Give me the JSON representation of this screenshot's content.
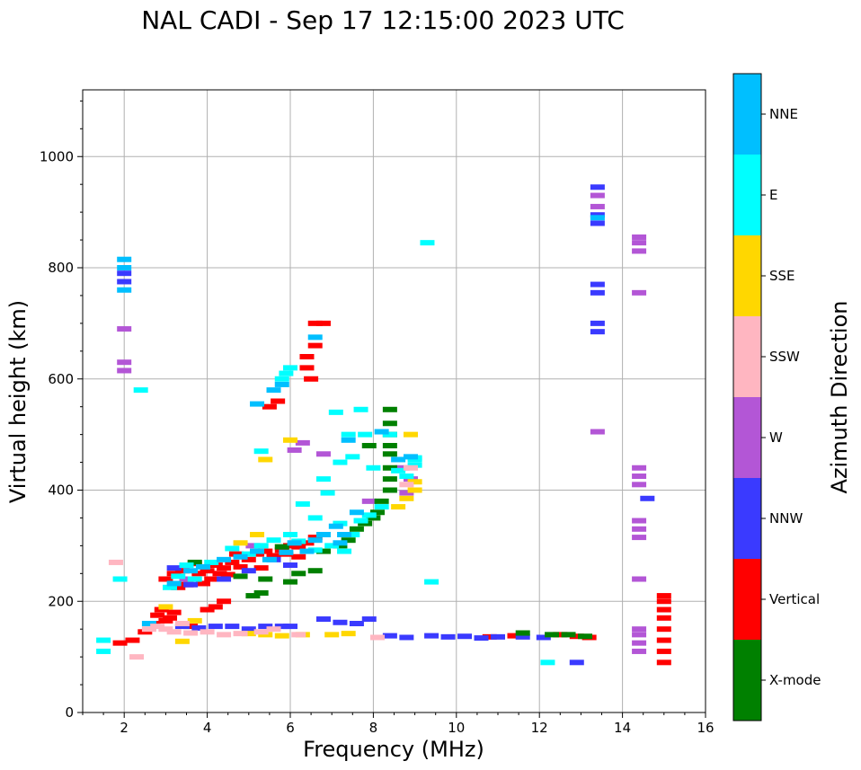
{
  "chart_data": {
    "type": "scatter",
    "title": "NAL CADI - Sep 17 12:15:00 2023 UTC",
    "xlabel": "Frequency (MHz)",
    "ylabel": "Virtual height (km)",
    "xlim": [
      1,
      16
    ],
    "ylim": [
      0,
      1120
    ],
    "xticks": [
      2,
      4,
      6,
      8,
      10,
      12,
      14,
      16
    ],
    "yticks": [
      0,
      200,
      400,
      600,
      800,
      1000
    ],
    "grid": true,
    "colorbar": {
      "label": "Azimuth Direction",
      "categories": [
        {
          "name": "X-mode",
          "color": "#008000"
        },
        {
          "name": "Vertical",
          "color": "#ff0000"
        },
        {
          "name": "NNW",
          "color": "#3a3aff"
        },
        {
          "name": "W",
          "color": "#b356d6"
        },
        {
          "name": "SSW",
          "color": "#ffb6c1"
        },
        {
          "name": "SSE",
          "color": "#ffd700"
        },
        {
          "name": "E",
          "color": "#00ffff"
        },
        {
          "name": "NNE",
          "color": "#00bfff"
        }
      ]
    },
    "series": [
      {
        "name": "Vertical",
        "points": [
          [
            1.9,
            125
          ],
          [
            2.2,
            130
          ],
          [
            2.5,
            145
          ],
          [
            2.7,
            160
          ],
          [
            2.8,
            175
          ],
          [
            2.9,
            185
          ],
          [
            3.0,
            165
          ],
          [
            3.1,
            170
          ],
          [
            3.2,
            180
          ],
          [
            3.0,
            240
          ],
          [
            3.2,
            250
          ],
          [
            3.4,
            255
          ],
          [
            3.6,
            240
          ],
          [
            3.8,
            250
          ],
          [
            4.0,
            255
          ],
          [
            4.2,
            265
          ],
          [
            4.4,
            260
          ],
          [
            4.6,
            270
          ],
          [
            4.8,
            262
          ],
          [
            5.0,
            275
          ],
          [
            5.2,
            285
          ],
          [
            5.4,
            290
          ],
          [
            5.6,
            282
          ],
          [
            5.8,
            292
          ],
          [
            6.0,
            300
          ],
          [
            6.2,
            298
          ],
          [
            6.4,
            305
          ],
          [
            6.6,
            315
          ],
          [
            3.3,
            225
          ],
          [
            3.5,
            230
          ],
          [
            4.1,
            240
          ],
          [
            4.3,
            250
          ],
          [
            4.5,
            248
          ],
          [
            3.9,
            232
          ],
          [
            3.7,
            268
          ],
          [
            4.7,
            285
          ],
          [
            5.3,
            260
          ],
          [
            3.6,
            155
          ],
          [
            4.0,
            185
          ],
          [
            4.2,
            190
          ],
          [
            4.4,
            200
          ],
          [
            5.5,
            550
          ],
          [
            5.7,
            560
          ],
          [
            6.4,
            620
          ],
          [
            6.4,
            640
          ],
          [
            6.6,
            660
          ],
          [
            6.8,
            700
          ],
          [
            6.6,
            700
          ],
          [
            6.5,
            600
          ],
          [
            15.0,
            90
          ],
          [
            15.0,
            110
          ],
          [
            15.0,
            130
          ],
          [
            15.0,
            150
          ],
          [
            15.0,
            170
          ],
          [
            15.0,
            185
          ],
          [
            15.0,
            200
          ],
          [
            15.0,
            210
          ],
          [
            12.5,
            140
          ],
          [
            13.2,
            135
          ],
          [
            11.4,
            138
          ],
          [
            10.8,
            136
          ],
          [
            12.9,
            137
          ],
          [
            6.2,
            280
          ],
          [
            5.9,
            285
          ]
        ]
      },
      {
        "name": "NNW",
        "points": [
          [
            3.4,
            155
          ],
          [
            3.8,
            152
          ],
          [
            4.2,
            155
          ],
          [
            4.6,
            155
          ],
          [
            5.0,
            150
          ],
          [
            5.4,
            155
          ],
          [
            5.8,
            155
          ],
          [
            6.0,
            155
          ],
          [
            6.8,
            168
          ],
          [
            7.2,
            162
          ],
          [
            7.6,
            160
          ],
          [
            7.9,
            168
          ],
          [
            8.4,
            138
          ],
          [
            8.8,
            135
          ],
          [
            9.4,
            138
          ],
          [
            9.8,
            136
          ],
          [
            10.2,
            137
          ],
          [
            10.6,
            134
          ],
          [
            11.0,
            136
          ],
          [
            11.6,
            136
          ],
          [
            12.1,
            135
          ],
          [
            12.9,
            90
          ],
          [
            13.4,
            685
          ],
          [
            13.4,
            700
          ],
          [
            13.4,
            755
          ],
          [
            13.4,
            770
          ],
          [
            13.4,
            880
          ],
          [
            13.4,
            895
          ],
          [
            13.4,
            945
          ],
          [
            14.6,
            385
          ],
          [
            2.0,
            775
          ],
          [
            2.0,
            790
          ],
          [
            3.2,
            260
          ],
          [
            3.6,
            230
          ],
          [
            4.4,
            240
          ],
          [
            5.0,
            255
          ],
          [
            5.6,
            275
          ],
          [
            6.0,
            265
          ]
        ]
      },
      {
        "name": "W",
        "points": [
          [
            2.0,
            615
          ],
          [
            2.0,
            630
          ],
          [
            2.0,
            690
          ],
          [
            13.4,
            505
          ],
          [
            13.4,
            910
          ],
          [
            13.4,
            930
          ],
          [
            14.4,
            110
          ],
          [
            14.4,
            125
          ],
          [
            14.4,
            140
          ],
          [
            14.4,
            150
          ],
          [
            14.4,
            240
          ],
          [
            14.4,
            315
          ],
          [
            14.4,
            330
          ],
          [
            14.4,
            345
          ],
          [
            14.4,
            410
          ],
          [
            14.4,
            425
          ],
          [
            14.4,
            440
          ],
          [
            14.4,
            755
          ],
          [
            14.4,
            830
          ],
          [
            14.4,
            845
          ],
          [
            14.4,
            855
          ],
          [
            6.3,
            485
          ],
          [
            6.1,
            472
          ],
          [
            6.8,
            465
          ],
          [
            8.9,
            420
          ],
          [
            8.8,
            395
          ],
          [
            7.9,
            380
          ],
          [
            8.7,
            440
          ],
          [
            5.1,
            300
          ],
          [
            3.5,
            240
          ]
        ]
      },
      {
        "name": "X-mode",
        "points": [
          [
            5.1,
            210
          ],
          [
            5.3,
            215
          ],
          [
            5.4,
            240
          ],
          [
            6.0,
            235
          ],
          [
            6.2,
            250
          ],
          [
            6.6,
            255
          ],
          [
            6.8,
            290
          ],
          [
            7.2,
            300
          ],
          [
            7.4,
            310
          ],
          [
            7.6,
            330
          ],
          [
            7.8,
            340
          ],
          [
            8.0,
            350
          ],
          [
            8.1,
            360
          ],
          [
            8.2,
            380
          ],
          [
            8.4,
            400
          ],
          [
            8.4,
            420
          ],
          [
            8.4,
            440
          ],
          [
            8.4,
            465
          ],
          [
            8.4,
            480
          ],
          [
            8.4,
            500
          ],
          [
            8.4,
            520
          ],
          [
            8.4,
            545
          ],
          [
            7.9,
            480
          ],
          [
            11.6,
            143
          ],
          [
            12.3,
            140
          ],
          [
            12.7,
            140
          ],
          [
            13.1,
            137
          ],
          [
            5.8,
            298
          ],
          [
            4.8,
            245
          ],
          [
            3.7,
            270
          ]
        ]
      },
      {
        "name": "SSE",
        "points": [
          [
            3.0,
            190
          ],
          [
            3.4,
            128
          ],
          [
            5.0,
            142
          ],
          [
            5.4,
            140
          ],
          [
            5.8,
            138
          ],
          [
            6.3,
            140
          ],
          [
            7.0,
            140
          ],
          [
            7.4,
            142
          ],
          [
            8.6,
            370
          ],
          [
            8.8,
            385
          ],
          [
            9.0,
            400
          ],
          [
            9.0,
            415
          ],
          [
            8.9,
            500
          ],
          [
            5.4,
            455
          ],
          [
            5.2,
            320
          ],
          [
            4.8,
            305
          ],
          [
            3.7,
            165
          ],
          [
            6.0,
            490
          ]
        ]
      },
      {
        "name": "E",
        "points": [
          [
            1.5,
            110
          ],
          [
            1.5,
            130
          ],
          [
            1.9,
            240
          ],
          [
            2.4,
            580
          ],
          [
            3.1,
            225
          ],
          [
            3.3,
            245
          ],
          [
            3.5,
            265
          ],
          [
            3.7,
            240
          ],
          [
            4.1,
            270
          ],
          [
            4.6,
            295
          ],
          [
            5.0,
            285
          ],
          [
            5.3,
            300
          ],
          [
            5.6,
            310
          ],
          [
            6.0,
            320
          ],
          [
            6.2,
            308
          ],
          [
            6.6,
            292
          ],
          [
            7.0,
            300
          ],
          [
            7.3,
            290
          ],
          [
            7.5,
            320
          ],
          [
            7.7,
            345
          ],
          [
            7.9,
            355
          ],
          [
            8.2,
            370
          ],
          [
            8.6,
            435
          ],
          [
            8.8,
            425
          ],
          [
            9.0,
            455
          ],
          [
            9.3,
            845
          ],
          [
            9.4,
            235
          ],
          [
            6.3,
            375
          ],
          [
            6.6,
            350
          ],
          [
            6.9,
            395
          ],
          [
            7.2,
            450
          ],
          [
            7.5,
            460
          ],
          [
            7.8,
            500
          ],
          [
            7.1,
            540
          ],
          [
            7.7,
            545
          ],
          [
            7.4,
            500
          ],
          [
            5.8,
            600
          ],
          [
            5.9,
            610
          ],
          [
            6.0,
            620
          ],
          [
            5.3,
            470
          ],
          [
            12.2,
            90
          ],
          [
            8.4,
            500
          ],
          [
            6.8,
            420
          ],
          [
            7.2,
            340
          ],
          [
            8.0,
            440
          ],
          [
            9.0,
            445
          ],
          [
            9.0,
            458
          ]
        ]
      },
      {
        "name": "NNE",
        "points": [
          [
            2.0,
            760
          ],
          [
            2.0,
            800
          ],
          [
            2.0,
            815
          ],
          [
            2.6,
            160
          ],
          [
            3.2,
            232
          ],
          [
            3.6,
            255
          ],
          [
            3.9,
            262
          ],
          [
            4.4,
            275
          ],
          [
            4.8,
            280
          ],
          [
            5.2,
            290
          ],
          [
            5.5,
            275
          ],
          [
            5.9,
            288
          ],
          [
            6.1,
            305
          ],
          [
            6.4,
            290
          ],
          [
            6.6,
            310
          ],
          [
            6.8,
            320
          ],
          [
            7.1,
            335
          ],
          [
            7.3,
            320
          ],
          [
            7.6,
            360
          ],
          [
            7.2,
            305
          ],
          [
            5.6,
            580
          ],
          [
            5.8,
            590
          ],
          [
            5.2,
            555
          ],
          [
            6.6,
            675
          ],
          [
            7.4,
            490
          ],
          [
            8.2,
            505
          ],
          [
            8.6,
            455
          ],
          [
            8.9,
            460
          ],
          [
            13.4,
            890
          ]
        ]
      },
      {
        "name": "SSW",
        "points": [
          [
            1.8,
            270
          ],
          [
            2.3,
            100
          ],
          [
            2.8,
            155
          ],
          [
            3.0,
            150
          ],
          [
            3.2,
            145
          ],
          [
            3.6,
            143
          ],
          [
            4.0,
            145
          ],
          [
            4.4,
            140
          ],
          [
            4.8,
            142
          ],
          [
            5.3,
            145
          ],
          [
            5.6,
            150
          ],
          [
            6.2,
            140
          ],
          [
            3.4,
            160
          ],
          [
            2.6,
            150
          ],
          [
            8.9,
            440
          ],
          [
            8.8,
            410
          ],
          [
            8.1,
            135
          ]
        ]
      }
    ]
  }
}
